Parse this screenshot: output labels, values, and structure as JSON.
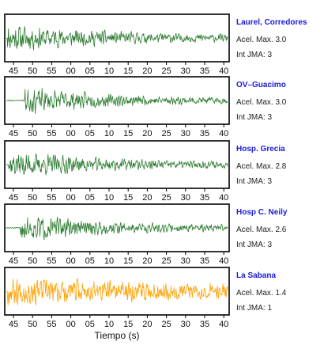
{
  "chart_data": {
    "type": "line",
    "xlabel": "Tiempo (s)",
    "x_tick_labels": [
      "45",
      "50",
      "55",
      "00",
      "05",
      "10",
      "15",
      "20",
      "25",
      "30",
      "35",
      "40"
    ],
    "info_labels": {
      "accel_prefix": "Acel. Max.",
      "intensity_prefix": "Int JMA:"
    },
    "series": [
      {
        "name": "Laurel, Corredores",
        "peak_accel": "3.0",
        "jma_intensity": "3",
        "color": "#2e7d32",
        "onset": 0.005,
        "seed": 11,
        "decay": 2.2
      },
      {
        "name": "OV–Guacimo",
        "peak_accel": "3.0",
        "jma_intensity": "3",
        "color": "#2e7d32",
        "onset": 0.08,
        "seed": 23,
        "decay": 2.8
      },
      {
        "name": "Hosp. Grecia",
        "peak_accel": "2.8",
        "jma_intensity": "3",
        "color": "#2e7d32",
        "onset": 0.01,
        "seed": 37,
        "decay": 2.4
      },
      {
        "name": "Hosp C. Neily",
        "peak_accel": "2.6",
        "jma_intensity": "3",
        "color": "#2e7d32",
        "onset": 0.06,
        "seed": 51,
        "decay": 2.6
      },
      {
        "name": "La Sabana",
        "peak_accel": "1.4",
        "jma_intensity": "1",
        "color": "#ffa000",
        "onset": 0.005,
        "seed": 67,
        "decay": 0.9
      }
    ]
  }
}
